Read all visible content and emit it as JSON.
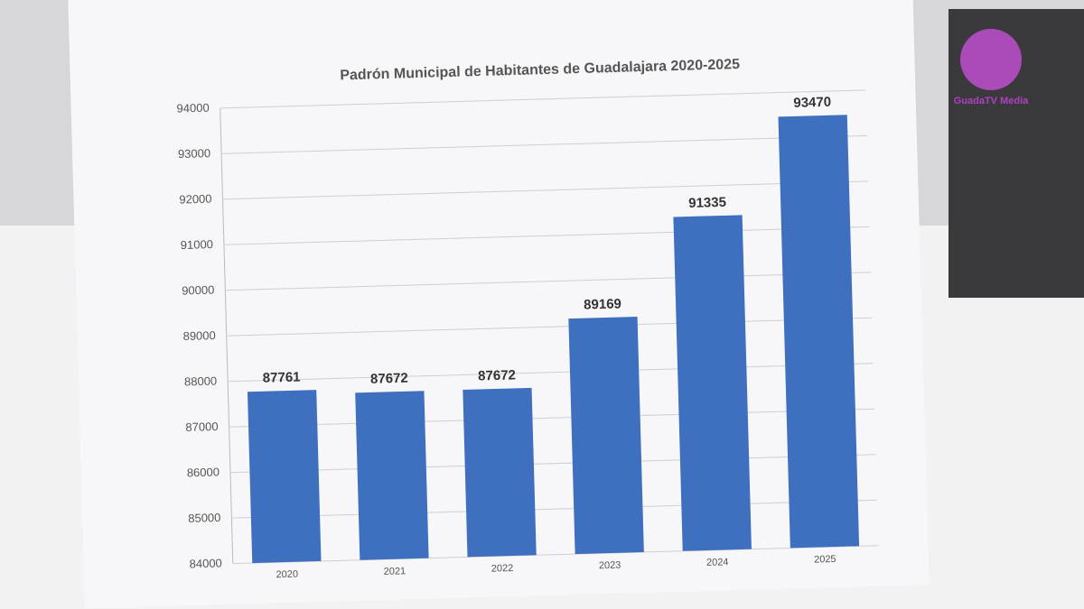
{
  "chart_data": {
    "type": "bar",
    "title": "Padrón Municipal de Habitantes de Guadalajara 2020-2025",
    "categories": [
      "2020",
      "2021",
      "2022",
      "2023",
      "2024",
      "2025"
    ],
    "values": [
      87761,
      87672,
      87672,
      89169,
      91335,
      93470
    ],
    "color": "#3f6fbf",
    "ylim": [
      84000,
      94000
    ],
    "yticks": [
      84000,
      85000,
      86000,
      87000,
      88000,
      89000,
      90000,
      91000,
      92000,
      93000,
      94000
    ],
    "grid": true
  },
  "watermark": "GuadaTV Media"
}
